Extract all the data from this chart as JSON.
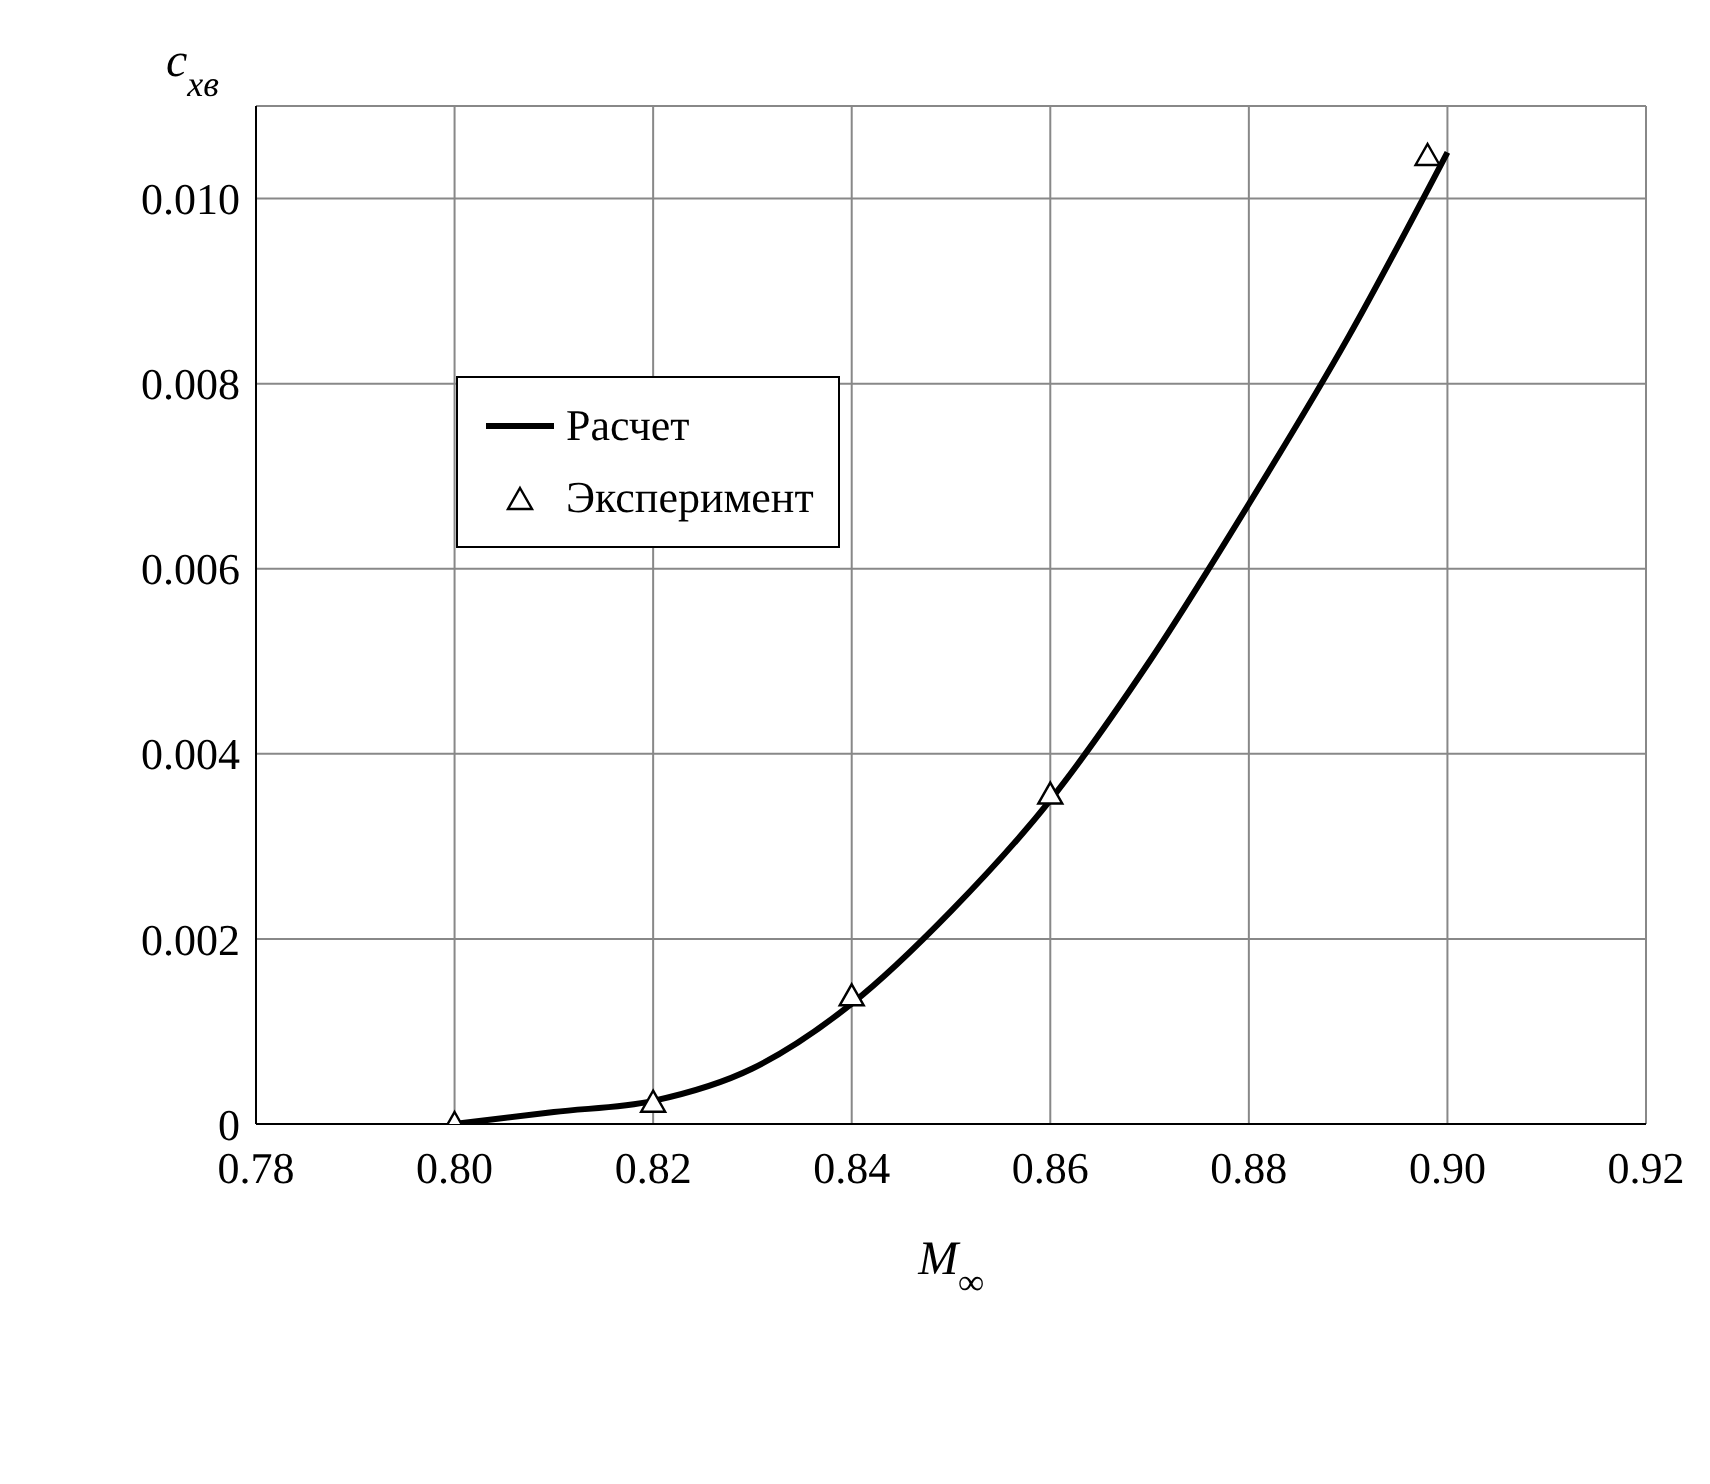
{
  "chart_data": {
    "type": "line",
    "xlabel": "M$_{∞}$",
    "ylabel": "c$_{xв}$",
    "series": [
      {
        "name": "Расчет",
        "color": "#000000",
        "marker": "none",
        "line_style": "solid",
        "x": [
          0.8,
          0.81,
          0.82,
          0.83,
          0.84,
          0.85,
          0.86,
          0.87,
          0.88,
          0.89,
          0.9
        ],
        "values": [
          0,
          0.00013,
          0.00025,
          0.0006,
          0.0013,
          0.0023,
          0.0035,
          0.005,
          0.0067,
          0.0085,
          0.0105
        ]
      },
      {
        "name": "Эксперимент",
        "type": "scatter",
        "color": "#000000",
        "marker": "triangle",
        "x": [
          0.8,
          0.82,
          0.84,
          0.86,
          0.898
        ],
        "values": [
          0,
          0.00023,
          0.00138,
          0.00356,
          0.01046
        ]
      }
    ],
    "xlim": [
      0.78,
      0.92
    ],
    "xticks": [
      0.78,
      {
        "value": 0.8,
        "label": "0.80"
      },
      0.82,
      0.84,
      0.86,
      0.88,
      {
        "value": 0.9,
        "label": "0.90"
      },
      0.92
    ],
    "ylim": [
      0,
      0.011
    ],
    "yticks": [
      0,
      0.002,
      0.004,
      0.006,
      0.008,
      {
        "value": 0.01,
        "label": "0.010"
      }
    ],
    "grid": true,
    "legend": "top left"
  }
}
